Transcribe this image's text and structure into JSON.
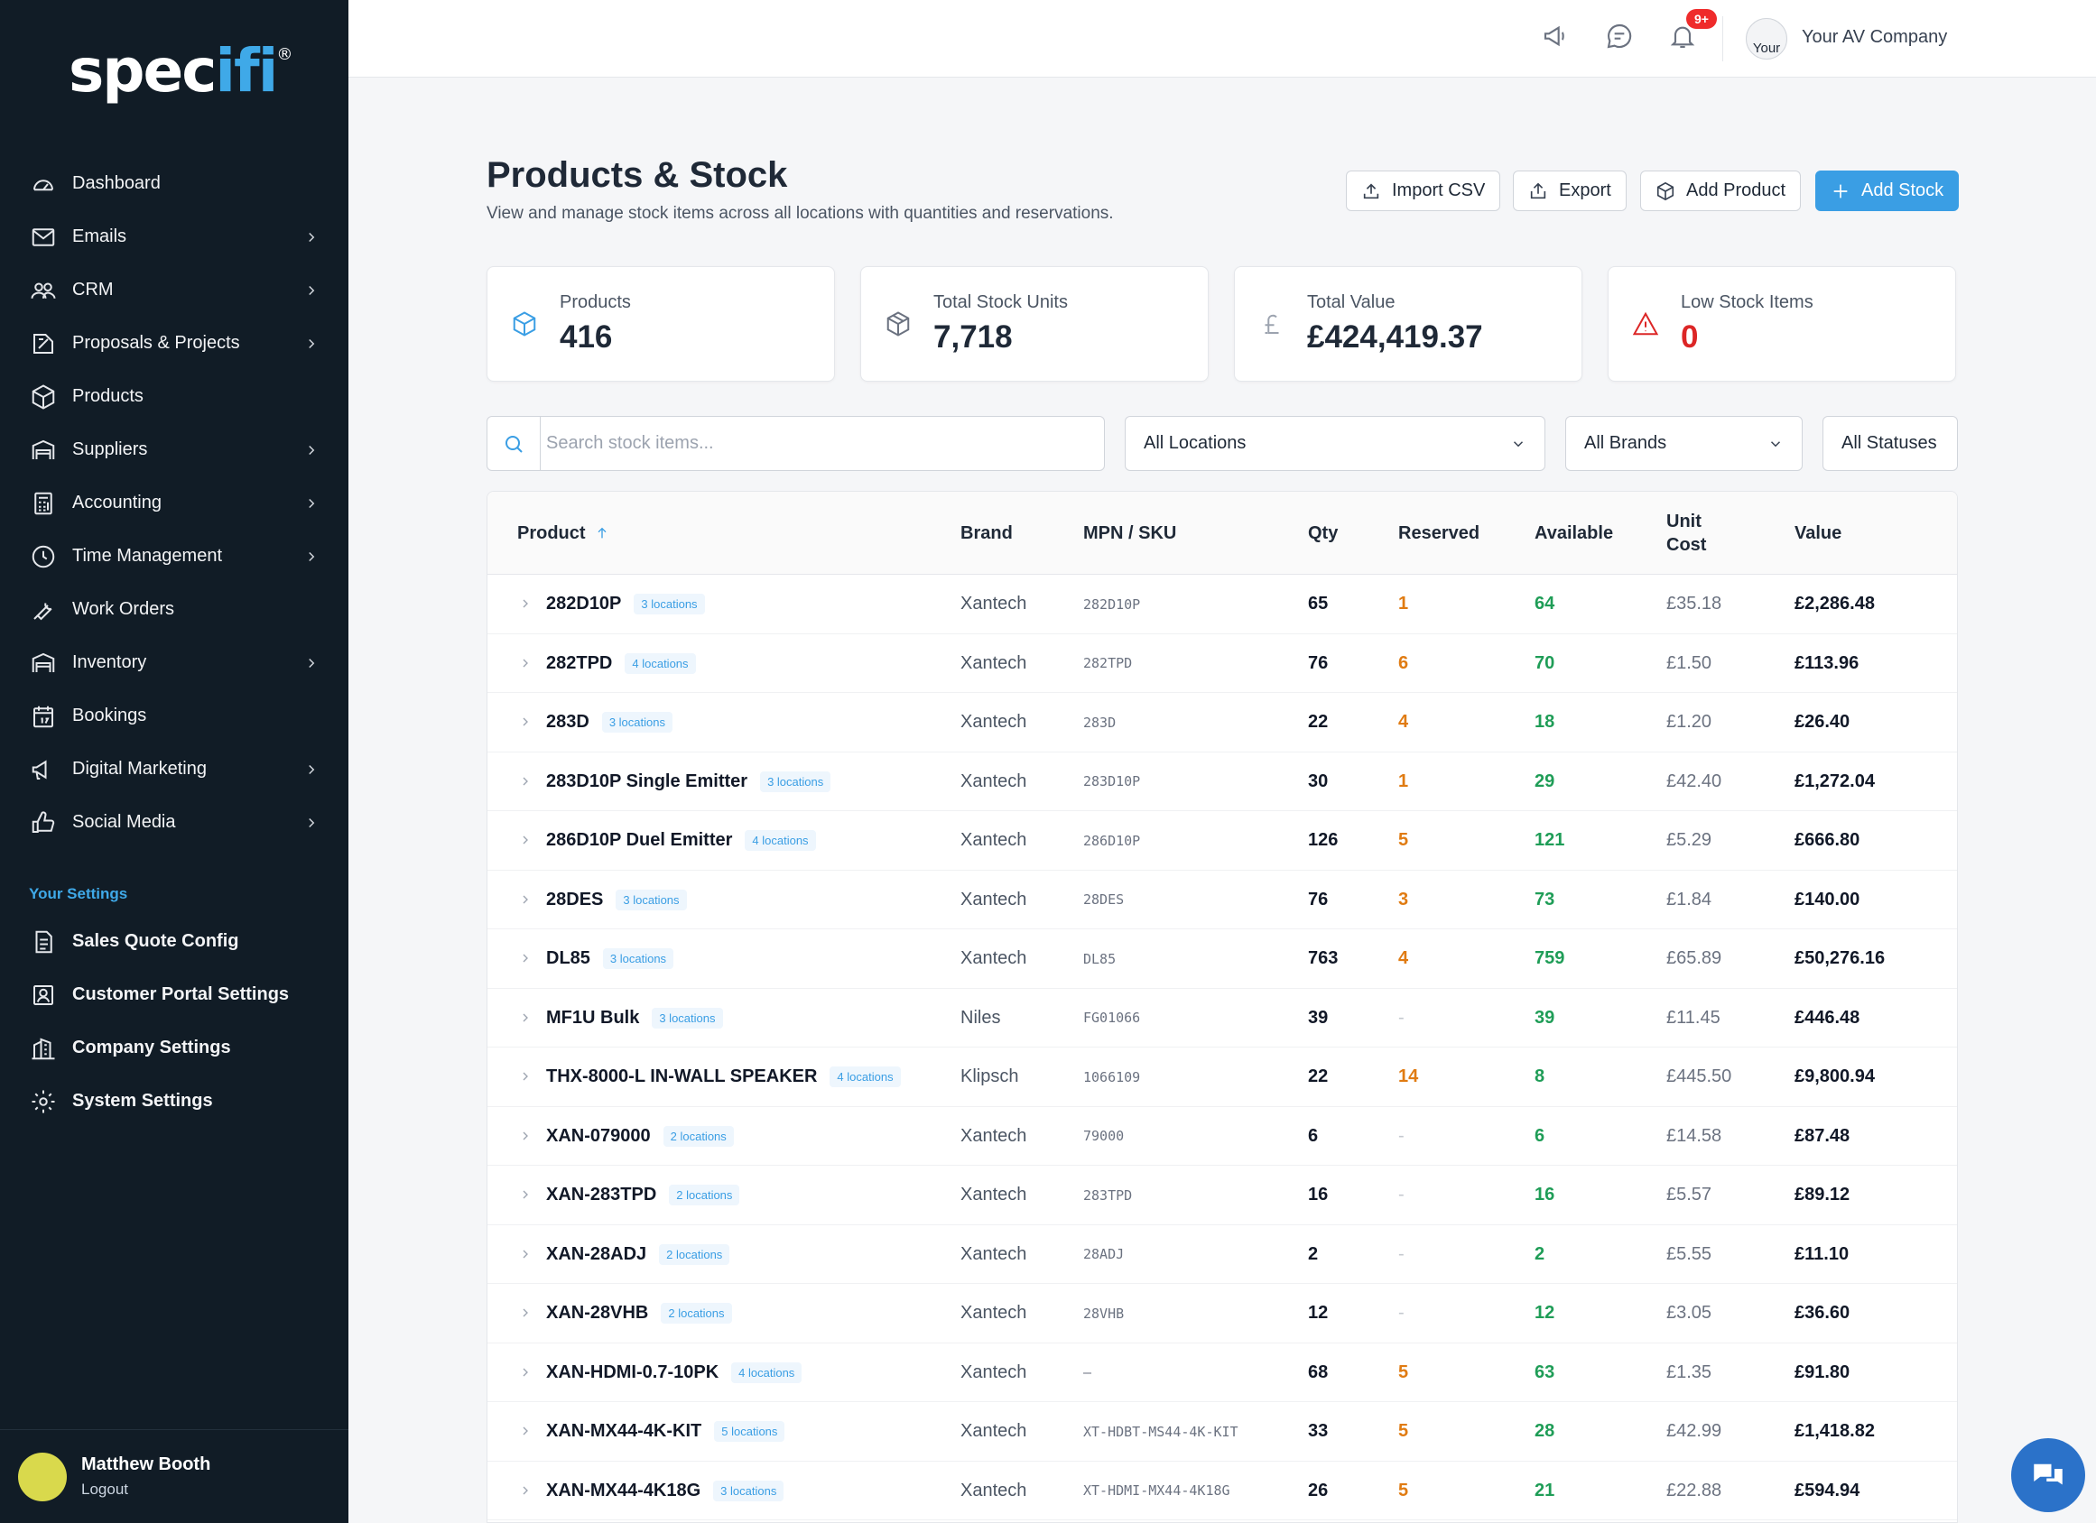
{
  "app": {
    "logo_text_a": "spec",
    "logo_text_b": "ifi",
    "logo_mark": "®"
  },
  "sidebar": {
    "items": [
      {
        "label": "Dashboard",
        "icon": "gauge-icon",
        "has_children": false
      },
      {
        "label": "Emails",
        "icon": "mail-icon",
        "has_children": true
      },
      {
        "label": "CRM",
        "icon": "users-icon",
        "has_children": true
      },
      {
        "label": "Proposals & Projects",
        "icon": "blueprint-icon",
        "has_children": true
      },
      {
        "label": "Products",
        "icon": "box-icon",
        "has_children": false
      },
      {
        "label": "Suppliers",
        "icon": "warehouse-icon",
        "has_children": true
      },
      {
        "label": "Accounting",
        "icon": "calculator-icon",
        "has_children": true
      },
      {
        "label": "Time Management",
        "icon": "clock-icon",
        "has_children": true
      },
      {
        "label": "Work Orders",
        "icon": "wrench-icon",
        "has_children": false
      },
      {
        "label": "Inventory",
        "icon": "warehouse-icon",
        "has_children": true
      },
      {
        "label": "Bookings",
        "icon": "calendar-icon",
        "has_children": false
      },
      {
        "label": "Digital Marketing",
        "icon": "megaphone-icon",
        "has_children": true
      },
      {
        "label": "Social Media",
        "icon": "thumbs-up-icon",
        "has_children": true
      }
    ],
    "settings_heading": "Your Settings",
    "settings_items": [
      {
        "label": "Sales Quote Config",
        "icon": "document-icon"
      },
      {
        "label": "Customer Portal Settings",
        "icon": "portal-icon"
      },
      {
        "label": "Company Settings",
        "icon": "building-icon"
      },
      {
        "label": "System Settings",
        "icon": "gear-icon"
      }
    ],
    "user": {
      "name": "Matthew Booth",
      "logout": "Logout"
    }
  },
  "header": {
    "notification_badge": "9+",
    "company_avatar_text": "Your",
    "company_name": "Your AV Company"
  },
  "page": {
    "title": "Products & Stock",
    "subtitle": "View and manage stock items across all locations with quantities and reservations.",
    "buttons": {
      "import_csv": "Import CSV",
      "export": "Export",
      "add_product": "Add Product",
      "add_stock": "Add Stock"
    }
  },
  "stats": [
    {
      "label": "Products",
      "value": "416",
      "icon": "cube-icon",
      "icon_color": "#3a9ee4"
    },
    {
      "label": "Total Stock Units",
      "value": "7,718",
      "icon": "cube-icon",
      "icon_color": "#6b7280"
    },
    {
      "label": "Total Value",
      "value": "£424,419.37",
      "icon": "pound-icon",
      "icon_color": "#9ca3af"
    },
    {
      "label": "Low Stock Items",
      "value": "0",
      "icon": "warning-icon",
      "icon_color": "#dc2626"
    }
  ],
  "filters": {
    "search_placeholder": "Search stock items...",
    "location": "All Locations",
    "brand": "All Brands",
    "status": "All Statuses"
  },
  "table": {
    "columns": {
      "product": "Product",
      "brand": "Brand",
      "sku": "MPN / SKU",
      "qty": "Qty",
      "reserved": "Reserved",
      "available": "Available",
      "unit_cost_a": "Unit",
      "unit_cost_b": "Cost",
      "value": "Value"
    },
    "rows": [
      {
        "product": "282D10P",
        "locations": "3 locations",
        "brand": "Xantech",
        "sku": "282D10P",
        "qty": "65",
        "reserved": "1",
        "available": "64",
        "unit_cost": "£35.18",
        "value": "£2,286.48"
      },
      {
        "product": "282TPD",
        "locations": "4 locations",
        "brand": "Xantech",
        "sku": "282TPD",
        "qty": "76",
        "reserved": "6",
        "available": "70",
        "unit_cost": "£1.50",
        "value": "£113.96"
      },
      {
        "product": "283D",
        "locations": "3 locations",
        "brand": "Xantech",
        "sku": "283D",
        "qty": "22",
        "reserved": "4",
        "available": "18",
        "unit_cost": "£1.20",
        "value": "£26.40"
      },
      {
        "product": "283D10P Single Emitter",
        "locations": "3 locations",
        "brand": "Xantech",
        "sku": "283D10P",
        "qty": "30",
        "reserved": "1",
        "available": "29",
        "unit_cost": "£42.40",
        "value": "£1,272.04"
      },
      {
        "product": "286D10P Duel Emitter",
        "locations": "4 locations",
        "brand": "Xantech",
        "sku": "286D10P",
        "qty": "126",
        "reserved": "5",
        "available": "121",
        "unit_cost": "£5.29",
        "value": "£666.80"
      },
      {
        "product": "28DES",
        "locations": "3 locations",
        "brand": "Xantech",
        "sku": "28DES",
        "qty": "76",
        "reserved": "3",
        "available": "73",
        "unit_cost": "£1.84",
        "value": "£140.00"
      },
      {
        "product": "DL85",
        "locations": "3 locations",
        "brand": "Xantech",
        "sku": "DL85",
        "qty": "763",
        "reserved": "4",
        "available": "759",
        "unit_cost": "£65.89",
        "value": "£50,276.16"
      },
      {
        "product": "MF1U Bulk",
        "locations": "3 locations",
        "brand": "Niles",
        "sku": "FG01066",
        "qty": "39",
        "reserved": "-",
        "available": "39",
        "unit_cost": "£11.45",
        "value": "£446.48"
      },
      {
        "product": "THX-8000-L IN-WALL SPEAKER",
        "locations": "4 locations",
        "brand": "Klipsch",
        "sku": "1066109",
        "qty": "22",
        "reserved": "14",
        "available": "8",
        "unit_cost": "£445.50",
        "value": "£9,800.94"
      },
      {
        "product": "XAN-079000",
        "locations": "2 locations",
        "brand": "Xantech",
        "sku": "79000",
        "qty": "6",
        "reserved": "-",
        "available": "6",
        "unit_cost": "£14.58",
        "value": "£87.48"
      },
      {
        "product": "XAN-283TPD",
        "locations": "2 locations",
        "brand": "Xantech",
        "sku": "283TPD",
        "qty": "16",
        "reserved": "-",
        "available": "16",
        "unit_cost": "£5.57",
        "value": "£89.12"
      },
      {
        "product": "XAN-28ADJ",
        "locations": "2 locations",
        "brand": "Xantech",
        "sku": "28ADJ",
        "qty": "2",
        "reserved": "-",
        "available": "2",
        "unit_cost": "£5.55",
        "value": "£11.10"
      },
      {
        "product": "XAN-28VHB",
        "locations": "2 locations",
        "brand": "Xantech",
        "sku": "28VHB",
        "qty": "12",
        "reserved": "-",
        "available": "12",
        "unit_cost": "£3.05",
        "value": "£36.60"
      },
      {
        "product": "XAN-HDMI-0.7-10PK",
        "locations": "4 locations",
        "brand": "Xantech",
        "sku": "–",
        "qty": "68",
        "reserved": "5",
        "available": "63",
        "unit_cost": "£1.35",
        "value": "£91.80"
      },
      {
        "product": "XAN-MX44-4K-KIT",
        "locations": "5 locations",
        "brand": "Xantech",
        "sku": "XT-HDBT-MS44-4K-KIT",
        "qty": "33",
        "reserved": "5",
        "available": "28",
        "unit_cost": "£42.99",
        "value": "£1,418.82"
      },
      {
        "product": "XAN-MX44-4K18G",
        "locations": "3 locations",
        "brand": "Xantech",
        "sku": "XT-HDMI-MX44-4K18G",
        "qty": "26",
        "reserved": "5",
        "available": "21",
        "unit_cost": "£22.88",
        "value": "£594.94"
      }
    ]
  }
}
